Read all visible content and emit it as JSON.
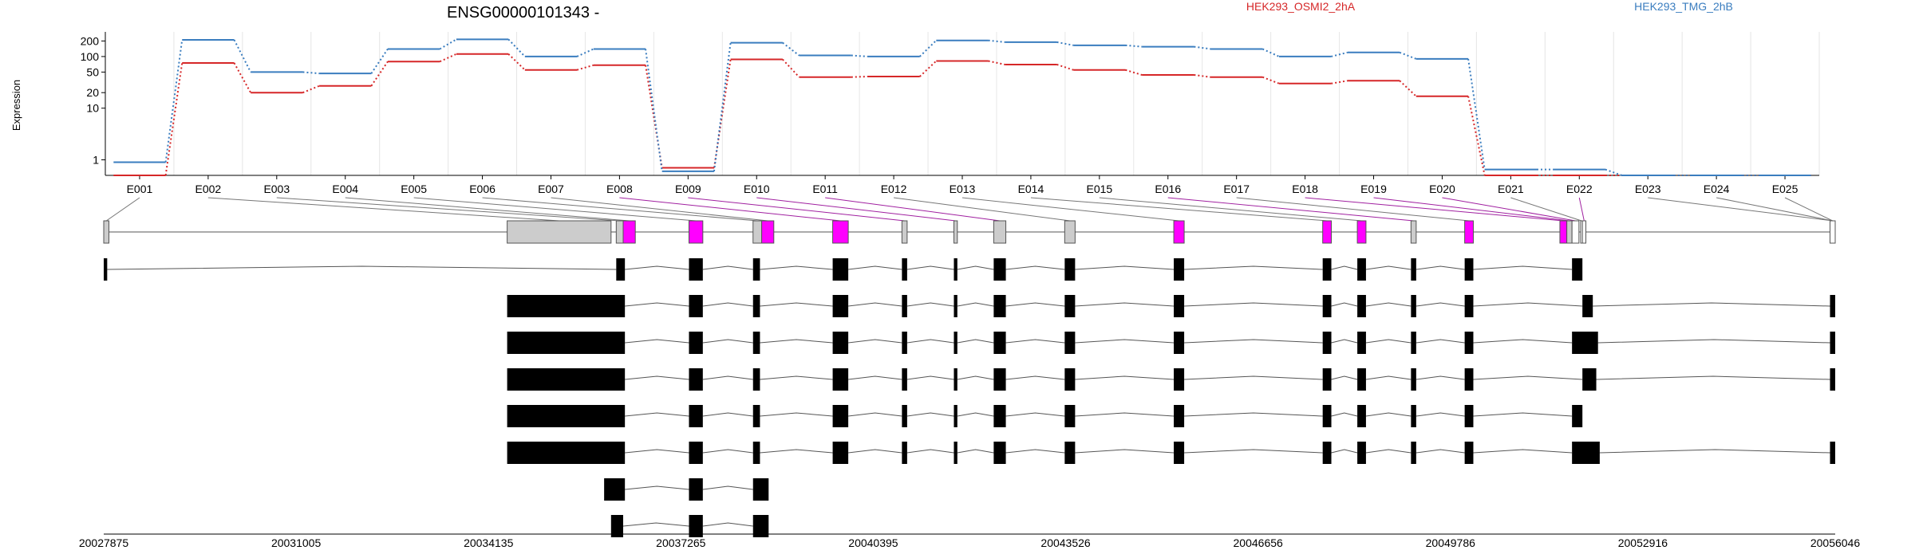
{
  "chart_data": {
    "type": "line",
    "title": "ENSG00000101343 -",
    "ylabel": "Expression",
    "y_scale": "log",
    "ylim": [
      0.5,
      300
    ],
    "y_ticks": [
      {
        "value": 1,
        "label": "1"
      },
      {
        "value": 10,
        "label": "10"
      },
      {
        "value": 20,
        "label": "20"
      },
      {
        "value": 50,
        "label": "50"
      },
      {
        "value": 100,
        "label": "100"
      },
      {
        "value": 200,
        "label": "200"
      }
    ],
    "grid": true,
    "categories": [
      "E001",
      "E002",
      "E003",
      "E004",
      "E005",
      "E006",
      "E007",
      "E008",
      "E009",
      "E010",
      "E011",
      "E012",
      "E013",
      "E014",
      "E015",
      "E016",
      "E017",
      "E018",
      "E019",
      "E020",
      "E021",
      "E022",
      "E023",
      "E024",
      "E025"
    ],
    "series": [
      {
        "name": "HEK293_OSMI2_2hA",
        "color": "#d62728",
        "values": [
          0.5,
          75,
          20,
          27,
          80,
          112,
          55,
          68,
          0.7,
          88,
          40,
          41,
          82,
          70,
          55,
          44,
          40,
          30,
          34,
          17,
          0.5,
          0.5,
          0.5,
          0.5,
          0.5
        ]
      },
      {
        "name": "HEK293_TMG_2hB",
        "color": "#3a7dbf",
        "values": [
          0.9,
          210,
          50,
          47,
          140,
          215,
          100,
          140,
          0.6,
          185,
          105,
          100,
          205,
          190,
          165,
          155,
          140,
          100,
          120,
          90,
          0.65,
          0.65,
          0.5,
          0.5,
          0.5
        ]
      }
    ],
    "gene_axis": {
      "ticks": [
        "20027875",
        "20031005",
        "20034135",
        "20037265",
        "20040395",
        "20043526",
        "20046656",
        "20049786",
        "20052916",
        "20056046"
      ]
    },
    "exon_highlight_color": "#ff00ff",
    "highlighted_exons": [
      "E008",
      "E009",
      "E010",
      "E011",
      "E016",
      "E018",
      "E019",
      "E020",
      "E022"
    ]
  }
}
